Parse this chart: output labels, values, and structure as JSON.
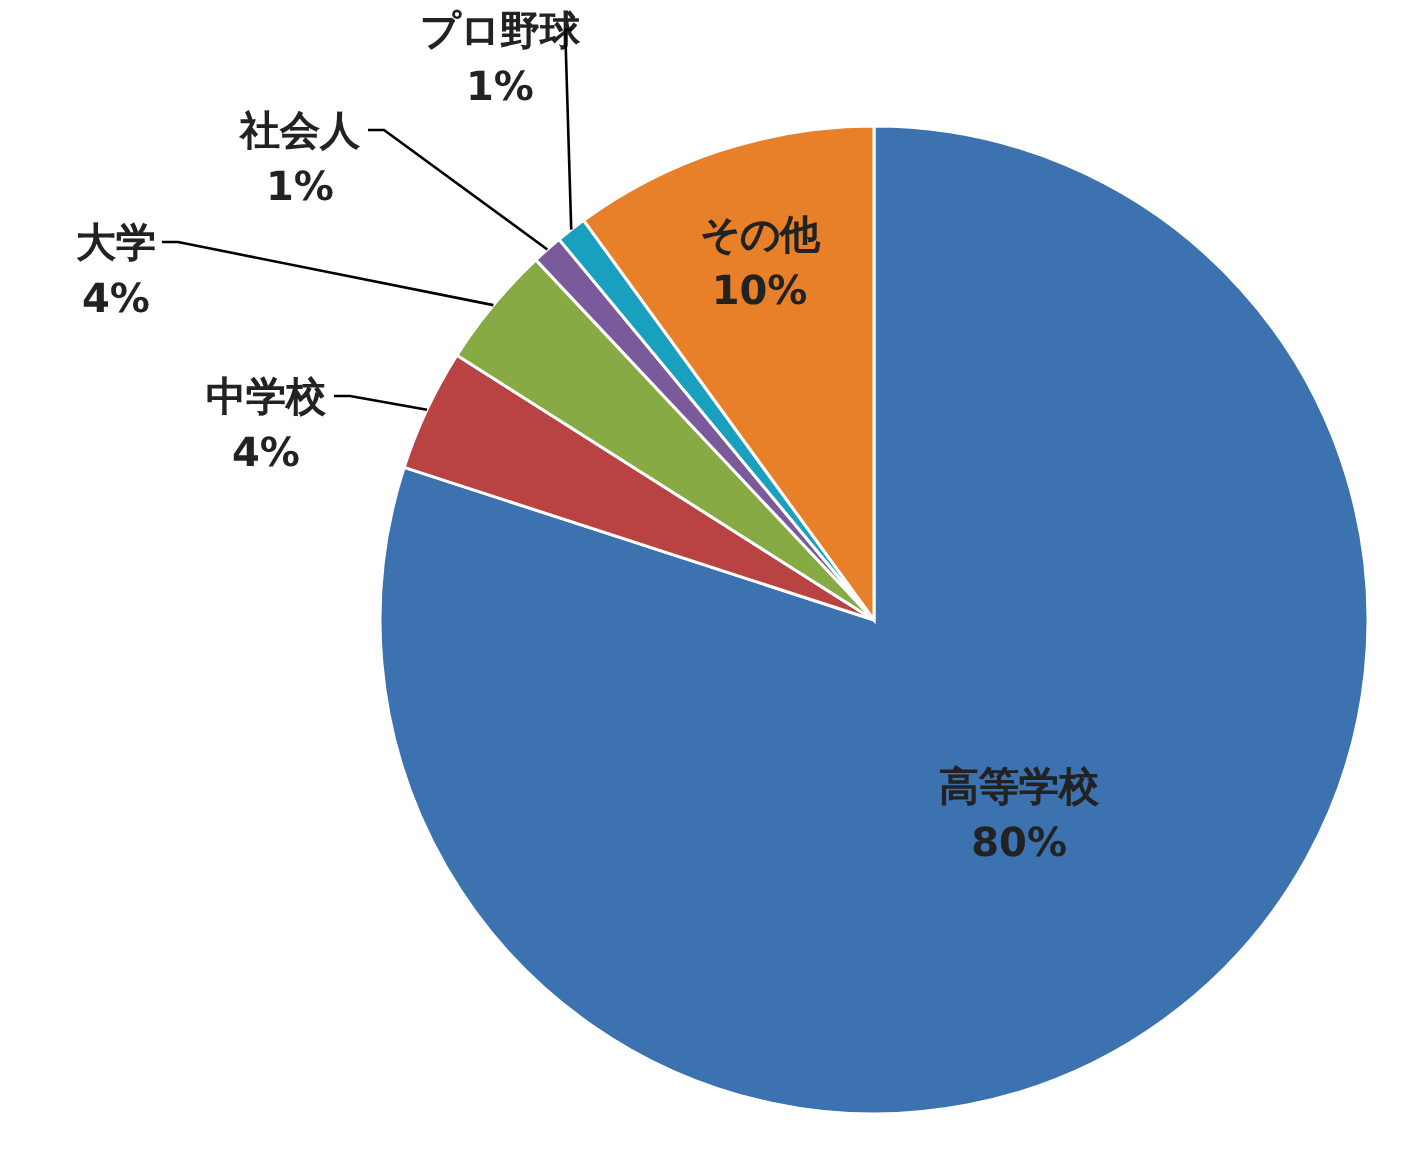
{
  "chart_data": {
    "type": "pie",
    "categories": [
      "高等学校",
      "中学校",
      "大学",
      "社会人",
      "プロ野球",
      "その他"
    ],
    "values": [
      80,
      4,
      4,
      1,
      1,
      10
    ],
    "value_labels": [
      "80%",
      "4%",
      "4%",
      "1%",
      "1%",
      "10%"
    ],
    "colors": [
      "#3c72b0",
      "#b94242",
      "#88aa44",
      "#7a5a9a",
      "#1aa0bf",
      "#e8802a"
    ]
  }
}
